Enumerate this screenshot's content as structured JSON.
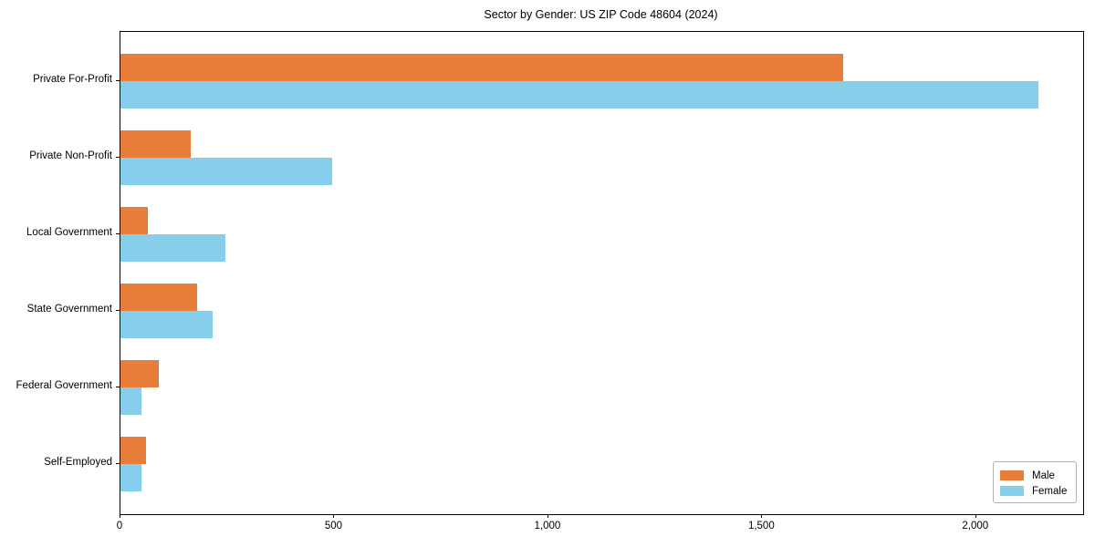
{
  "chart_data": {
    "type": "bar",
    "orientation": "horizontal",
    "title": "Sector by Gender: US ZIP Code 48604 (2024)",
    "categories": [
      "Private For-Profit",
      "Private Non-Profit",
      "Local Government",
      "State Government",
      "Federal Government",
      "Self-Employed"
    ],
    "series": [
      {
        "name": "Male",
        "color": "#E87D3A",
        "values": [
          1690,
          165,
          65,
          180,
          90,
          60
        ]
      },
      {
        "name": "Female",
        "color": "#87CEEB",
        "values": [
          2145,
          495,
          245,
          215,
          50,
          50
        ]
      }
    ],
    "xlabel": "",
    "ylabel": "",
    "xlim": [
      0,
      2250
    ],
    "x_ticks": [
      {
        "value": 0,
        "label": "0"
      },
      {
        "value": 500,
        "label": "500"
      },
      {
        "value": 1000,
        "label": "1,000"
      },
      {
        "value": 1500,
        "label": "1,500"
      },
      {
        "value": 2000,
        "label": "2,000"
      }
    ],
    "grid": false,
    "legend_position": "lower right",
    "axis_color": "#000000",
    "background_color": "#ffffff"
  }
}
